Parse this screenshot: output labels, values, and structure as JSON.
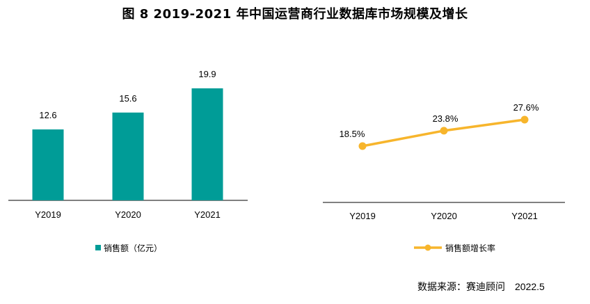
{
  "title": "图 8   2019-2021 年中国运营商行业数据库市场规模及增长",
  "source": {
    "label": "数据来源：赛迪顾问",
    "date": "2022.5"
  },
  "chart_data": [
    {
      "type": "bar",
      "categories": [
        "Y2019",
        "Y2020",
        "Y2021"
      ],
      "series": [
        {
          "name": "销售额（亿元）",
          "values": [
            12.6,
            15.6,
            19.9
          ],
          "color": "#009C97"
        }
      ],
      "data_labels": [
        "12.6",
        "15.6",
        "19.9"
      ],
      "legend_position": "bottom"
    },
    {
      "type": "line",
      "categories": [
        "Y2019",
        "Y2020",
        "Y2021"
      ],
      "series": [
        {
          "name": "销售额增长率",
          "values": [
            18.5,
            23.8,
            27.6
          ],
          "color": "#F7B52C"
        }
      ],
      "data_labels": [
        "18.5%",
        "23.8%",
        "27.6%"
      ],
      "legend_position": "bottom"
    }
  ]
}
